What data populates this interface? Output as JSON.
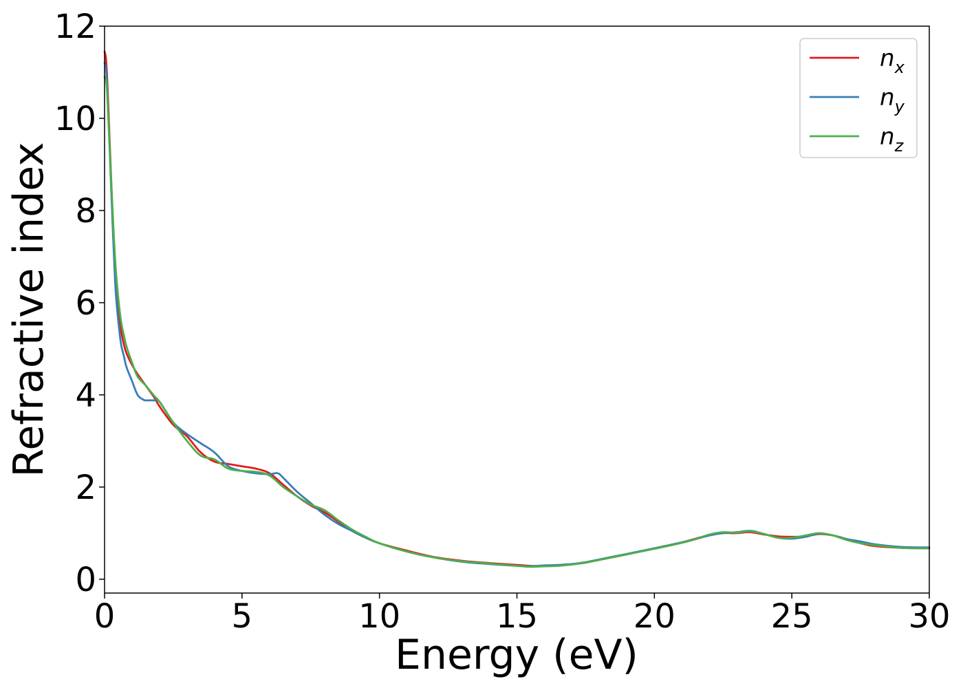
{
  "chart_data": {
    "type": "line",
    "xlabel": "Energy (eV)",
    "ylabel": "Refractive index",
    "xlim": [
      0,
      30
    ],
    "ylim": [
      -0.3,
      12
    ],
    "xticks": [
      0,
      5,
      10,
      15,
      20,
      25,
      30
    ],
    "yticks": [
      0,
      2,
      4,
      6,
      8,
      10,
      12
    ],
    "grid": false,
    "legend_position": "top-right",
    "series": [
      {
        "name": "n",
        "subscript": "x",
        "color": "#e41a1c",
        "x": [
          0,
          0.05,
          0.1,
          0.2,
          0.3,
          0.4,
          0.5,
          0.6,
          0.7,
          0.8,
          1.0,
          1.2,
          1.5,
          1.8,
          2.0,
          2.5,
          3.0,
          3.5,
          4.0,
          4.5,
          5.0,
          5.5,
          6.0,
          6.5,
          7.0,
          7.5,
          8.0,
          8.5,
          9.0,
          9.5,
          10,
          11,
          12,
          13,
          14,
          15,
          15.5,
          16,
          16.5,
          17,
          17.5,
          18,
          19,
          20,
          21,
          21.5,
          22,
          22.5,
          23,
          23.5,
          24,
          24.5,
          25,
          25.5,
          26,
          26.5,
          27,
          27.5,
          28,
          29,
          30
        ],
        "y": [
          11.45,
          11.3,
          10.8,
          9.3,
          7.8,
          6.6,
          5.9,
          5.4,
          5.1,
          4.9,
          4.65,
          4.45,
          4.2,
          3.95,
          3.75,
          3.35,
          3.1,
          2.75,
          2.55,
          2.5,
          2.45,
          2.4,
          2.3,
          2.05,
          1.8,
          1.6,
          1.45,
          1.25,
          1.05,
          0.9,
          0.78,
          0.62,
          0.48,
          0.4,
          0.35,
          0.31,
          0.29,
          0.29,
          0.3,
          0.32,
          0.36,
          0.42,
          0.54,
          0.67,
          0.8,
          0.88,
          0.96,
          1.0,
          1.0,
          1.02,
          0.97,
          0.93,
          0.92,
          0.93,
          0.98,
          0.95,
          0.87,
          0.78,
          0.72,
          0.68,
          0.67
        ]
      },
      {
        "name": "n",
        "subscript": "y",
        "color": "#377eb8",
        "x": [
          0,
          0.05,
          0.1,
          0.2,
          0.3,
          0.4,
          0.5,
          0.6,
          0.7,
          0.8,
          1.0,
          1.2,
          1.4,
          1.5,
          1.8,
          2.0,
          2.5,
          3.0,
          3.5,
          4.0,
          4.5,
          5.0,
          5.5,
          6.0,
          6.3,
          6.5,
          7.0,
          7.5,
          8.0,
          8.5,
          9.0,
          9.5,
          10,
          11,
          12,
          13,
          14,
          15,
          15.5,
          16,
          16.5,
          17,
          17.5,
          18,
          19,
          20,
          21,
          21.5,
          22,
          22.5,
          23,
          23.5,
          24,
          24.5,
          25,
          25.5,
          26,
          26.5,
          27,
          27.5,
          28,
          29,
          30
        ],
        "y": [
          11.2,
          11.1,
          10.6,
          9.1,
          7.6,
          6.3,
          5.6,
          5.1,
          4.85,
          4.6,
          4.3,
          4.0,
          3.9,
          3.88,
          3.88,
          3.85,
          3.4,
          3.15,
          2.95,
          2.75,
          2.45,
          2.35,
          2.3,
          2.28,
          2.3,
          2.2,
          1.9,
          1.65,
          1.4,
          1.2,
          1.05,
          0.9,
          0.78,
          0.6,
          0.47,
          0.38,
          0.33,
          0.29,
          0.28,
          0.3,
          0.31,
          0.33,
          0.37,
          0.43,
          0.55,
          0.67,
          0.8,
          0.87,
          0.95,
          1.0,
          1.02,
          1.05,
          0.98,
          0.9,
          0.88,
          0.92,
          0.99,
          0.95,
          0.87,
          0.82,
          0.76,
          0.7,
          0.69
        ]
      },
      {
        "name": "n",
        "subscript": "z",
        "color": "#4daf4a",
        "x": [
          0,
          0.05,
          0.1,
          0.2,
          0.3,
          0.4,
          0.5,
          0.6,
          0.7,
          0.8,
          1.0,
          1.2,
          1.5,
          1.8,
          2.0,
          2.5,
          3.0,
          3.5,
          4.0,
          4.5,
          5.0,
          5.5,
          6.0,
          6.5,
          7.0,
          7.5,
          8.0,
          8.5,
          9.0,
          9.5,
          10,
          11,
          12,
          13,
          14,
          15,
          15.5,
          16,
          16.5,
          17,
          17.5,
          18,
          19,
          20,
          21,
          21.5,
          22,
          22.5,
          23,
          23.5,
          24,
          24.5,
          25,
          25.5,
          26,
          26.5,
          27,
          27.5,
          28,
          29,
          30
        ],
        "y": [
          10.9,
          10.85,
          10.5,
          9.2,
          7.9,
          6.8,
          6.1,
          5.6,
          5.3,
          5.05,
          4.7,
          4.4,
          4.2,
          3.98,
          3.85,
          3.4,
          3.0,
          2.68,
          2.6,
          2.4,
          2.35,
          2.33,
          2.25,
          2.0,
          1.8,
          1.62,
          1.5,
          1.28,
          1.08,
          0.92,
          0.78,
          0.6,
          0.47,
          0.39,
          0.34,
          0.29,
          0.27,
          0.28,
          0.29,
          0.32,
          0.36,
          0.42,
          0.54,
          0.66,
          0.79,
          0.87,
          0.97,
          1.02,
          1.01,
          1.04,
          0.98,
          0.9,
          0.9,
          0.95,
          1.0,
          0.95,
          0.85,
          0.78,
          0.74,
          0.68,
          0.67
        ]
      }
    ]
  }
}
